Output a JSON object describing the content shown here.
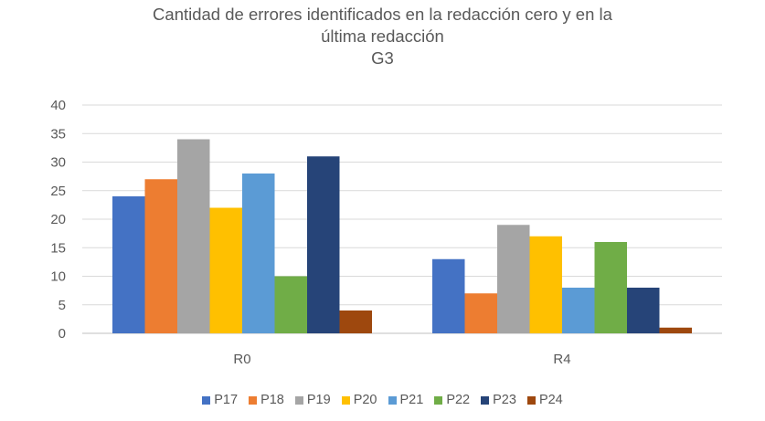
{
  "chart_data": {
    "type": "bar",
    "title_lines": [
      "Cantidad de errores identificados en la redacción cero y en la",
      "última redacción",
      "G3"
    ],
    "categories": [
      "R0",
      "R4"
    ],
    "series": [
      {
        "name": "P17",
        "color": "#4472C4",
        "values": [
          24,
          13
        ]
      },
      {
        "name": "P18",
        "color": "#ED7D31",
        "values": [
          27,
          7
        ]
      },
      {
        "name": "P19",
        "color": "#A5A5A5",
        "values": [
          34,
          19
        ]
      },
      {
        "name": "P20",
        "color": "#FFC000",
        "values": [
          22,
          17
        ]
      },
      {
        "name": "P21",
        "color": "#5B9BD5",
        "values": [
          28,
          8
        ]
      },
      {
        "name": "P22",
        "color": "#70AD47",
        "values": [
          10,
          16
        ]
      },
      {
        "name": "P23",
        "color": "#264478",
        "values": [
          31,
          8
        ]
      },
      {
        "name": "P24",
        "color": "#9E480E",
        "values": [
          4,
          1
        ]
      }
    ],
    "y_ticks": [
      0,
      5,
      10,
      15,
      20,
      25,
      30,
      35,
      40
    ],
    "ylim": [
      0,
      40
    ],
    "grid": true,
    "legend_position": "bottom",
    "xlabel": "",
    "ylabel": ""
  }
}
